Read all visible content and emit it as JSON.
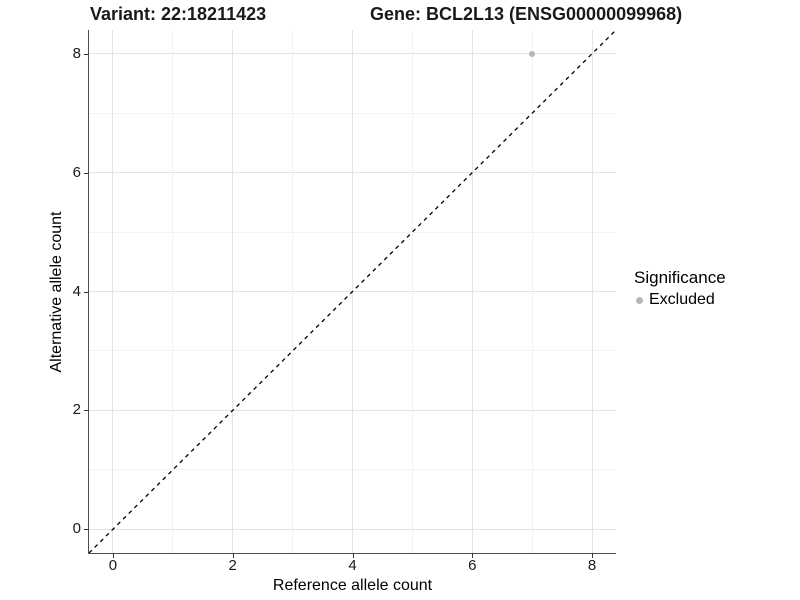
{
  "chart_data": {
    "type": "scatter",
    "title_left": "Variant: 22:18211423",
    "title_right": "Gene: BCL2L13 (ENSG00000099968)",
    "xlabel": "Reference allele count",
    "ylabel": "Alternative allele count",
    "xlim": [
      -0.4,
      8.4
    ],
    "ylim": [
      -0.4,
      8.4
    ],
    "x_major_ticks": [
      0,
      2,
      4,
      6,
      8
    ],
    "y_major_ticks": [
      0,
      2,
      4,
      6,
      8
    ],
    "x_minor_ticks": [
      1,
      3,
      5,
      7
    ],
    "y_minor_ticks": [
      1,
      3,
      5,
      7
    ],
    "grid": "major and minor gridlines on white background",
    "reference_line": {
      "kind": "identity y=x",
      "style": "dashed",
      "color": "#000000",
      "from": [
        -0.4,
        -0.4
      ],
      "to": [
        8.4,
        8.4
      ]
    },
    "series": [
      {
        "name": "Excluded",
        "color": "#b5b5b5",
        "points": [
          {
            "x": 7,
            "y": 8
          }
        ]
      }
    ],
    "legend": {
      "position": "right",
      "title": "Significance",
      "entries": [
        {
          "label": "Excluded",
          "color": "#b5b5b5",
          "marker": "circle"
        }
      ]
    }
  },
  "colors": {
    "grid_major": "#e4e4e4",
    "grid_minor": "#f3f3f3",
    "axis_line": "#4d4d4d",
    "point": "#b5b5b5",
    "dashed_line": "#000000",
    "text": "#1a1a1a"
  }
}
